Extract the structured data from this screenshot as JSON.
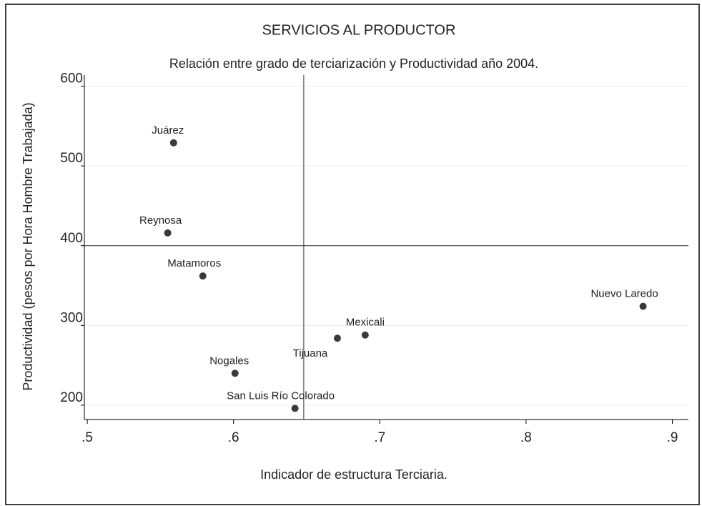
{
  "chart_data": {
    "type": "scatter",
    "title": "SERVICIOS AL PRODUCTOR",
    "subtitle": "Relación entre grado de terciarización y Productividad  año 2004.",
    "x_label": "Indicador de estructura Terciaria.",
    "y_label": "Productividad  (pesos por Hora Hombre Trabajada)",
    "labels": [
      "Juárez",
      "Reynosa",
      "Matamoros",
      "Nuevo Laredo",
      "Mexicali",
      "Tijuana",
      "Nogales",
      "San Luis Río Colorado"
    ],
    "x": [
      0.559,
      0.555,
      0.579,
      0.88,
      0.69,
      0.671,
      0.601,
      0.642
    ],
    "values": [
      529,
      416,
      362,
      324,
      288,
      284,
      240,
      196
    ],
    "color": "#3a3a3a",
    "xlim": [
      0.498,
      0.911
    ],
    "ylim": [
      182,
      614
    ],
    "xticks": [
      {
        "value": 0.5,
        "label": ".5"
      },
      {
        "value": 0.6,
        "label": ".6"
      },
      {
        "value": 0.7,
        "label": ".7"
      },
      {
        "value": 0.8,
        "label": ".8"
      },
      {
        "value": 0.9,
        "label": ".9"
      }
    ],
    "yticks": [
      200,
      300,
      400,
      500,
      600
    ],
    "x_reference": 0.648,
    "y_reference": 400,
    "grid": true
  }
}
